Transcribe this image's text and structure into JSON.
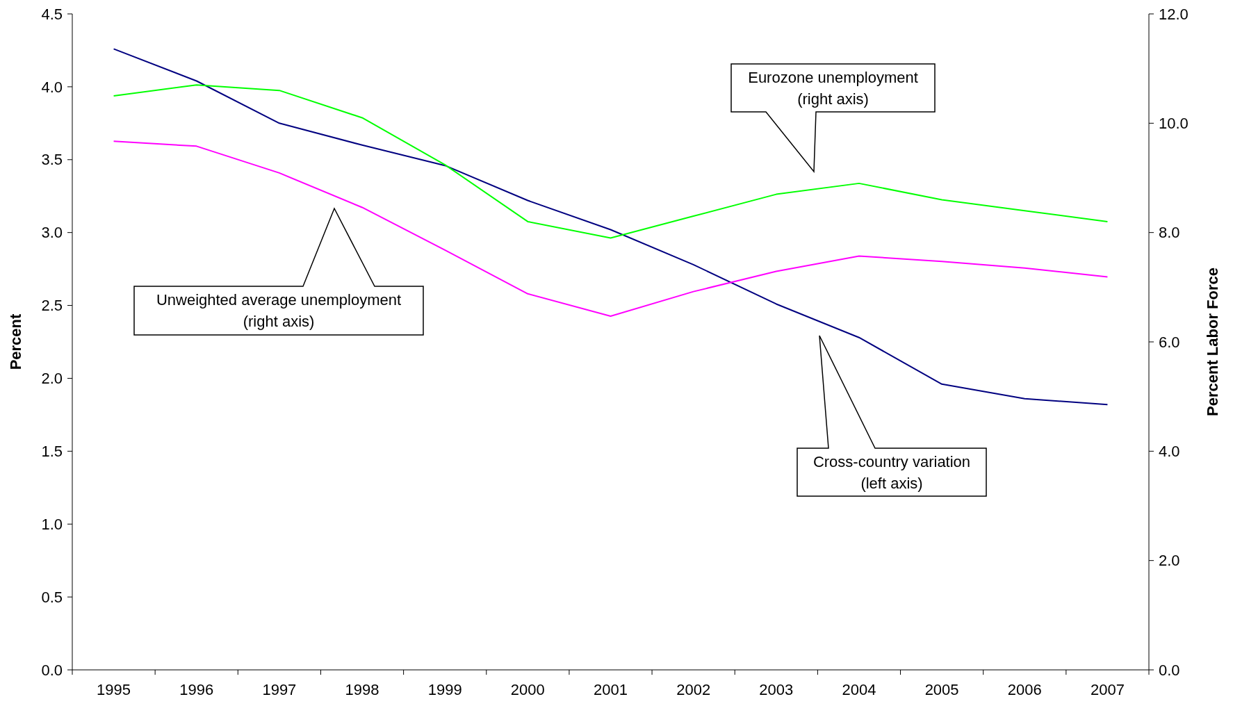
{
  "chart_data": {
    "type": "line",
    "ylabel": "Percent",
    "y2label": "Percent Labor Force",
    "categories": [
      "1995",
      "1996",
      "1997",
      "1998",
      "1999",
      "2000",
      "2001",
      "2002",
      "2003",
      "2004",
      "2005",
      "2006",
      "2007"
    ],
    "ylim": [
      0,
      4.5
    ],
    "yticks": [
      {
        "value": 0,
        "label": "0.0"
      },
      {
        "value": 0.5,
        "label": "0.5"
      },
      {
        "value": 1,
        "label": "1.0"
      },
      {
        "value": 1.5,
        "label": "1.5"
      },
      {
        "value": 2,
        "label": "2.0"
      },
      {
        "value": 2.5,
        "label": "2.5"
      },
      {
        "value": 3,
        "label": "3.0"
      },
      {
        "value": 3.5,
        "label": "3.5"
      },
      {
        "value": 4,
        "label": "4.0"
      },
      {
        "value": 4.5,
        "label": "4.5"
      }
    ],
    "y2lim": [
      0,
      12
    ],
    "y2ticks": [
      {
        "value": 0,
        "label": "0.0"
      },
      {
        "value": 2,
        "label": "2.0"
      },
      {
        "value": 4,
        "label": "4.0"
      },
      {
        "value": 6,
        "label": "6.0"
      },
      {
        "value": 8,
        "label": "8.0"
      },
      {
        "value": 10,
        "label": "10.0"
      },
      {
        "value": 12,
        "label": "12.0"
      }
    ],
    "series": [
      {
        "color": "#000080",
        "values": [
          4.26,
          4.04,
          3.75,
          3.6,
          3.46,
          3.22,
          3.02,
          2.78,
          2.51,
          2.28,
          1.96,
          1.86,
          1.82
        ]
      },
      {
        "color": "#00ff00",
        "axis": "y2",
        "values": [
          10.5,
          10.7,
          10.6,
          10.1,
          9.24,
          8.2,
          7.9,
          8.3,
          8.7,
          8.9,
          8.6,
          8.4,
          8.2
        ]
      },
      {
        "color": "#ff00ff",
        "axis": "y2",
        "values": [
          9.67,
          9.58,
          9.09,
          8.46,
          7.68,
          6.88,
          6.47,
          6.92,
          7.29,
          7.57,
          7.47,
          7.35,
          7.19
        ]
      }
    ],
    "annotations": [
      "Eurozone unemployment\n(right axis)",
      "Unweighted average unemployment\n(right axis)",
      "Cross-country variation\n(left axis)"
    ],
    "grid": false,
    "marker": "none",
    "line_style": "solid"
  }
}
